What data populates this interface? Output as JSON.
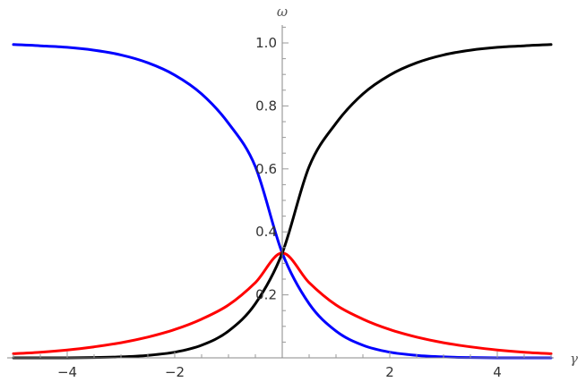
{
  "chart_data": {
    "type": "line",
    "xlabel": "γ",
    "ylabel": "ω",
    "xlim": [
      -5.1,
      5.05
    ],
    "ylim": [
      0,
      1.06
    ],
    "x_ticks": [
      -4,
      -2,
      2,
      4
    ],
    "x_tick_labels": [
      "−4",
      "−2",
      "2",
      "4"
    ],
    "y_ticks": [
      0.2,
      0.4,
      0.6,
      0.8,
      1.0
    ],
    "y_tick_labels": [
      "0.2",
      "0.4",
      "0.6",
      "0.8",
      "1.0"
    ],
    "grid": false,
    "x": [
      -5,
      -4.5,
      -4,
      -3.5,
      -3,
      -2.5,
      -2,
      -1.5,
      -1,
      -0.5,
      0,
      0.5,
      1,
      1.5,
      2,
      2.5,
      3,
      3.5,
      4,
      4.5,
      5
    ],
    "series": [
      {
        "color": "#0000ff",
        "values": [
          0.995,
          0.991,
          0.986,
          0.977,
          0.962,
          0.937,
          0.898,
          0.838,
          0.745,
          0.607,
          0.333,
          0.172,
          0.085,
          0.04,
          0.018,
          0.008,
          0.003,
          0.001,
          0.0,
          0.0,
          0.0
        ]
      },
      {
        "color": "#ff0000",
        "values": [
          0.013,
          0.018,
          0.025,
          0.035,
          0.048,
          0.066,
          0.09,
          0.123,
          0.168,
          0.239,
          0.333,
          0.239,
          0.168,
          0.123,
          0.09,
          0.066,
          0.048,
          0.035,
          0.025,
          0.018,
          0.013
        ]
      },
      {
        "color": "#000000",
        "values": [
          0.0,
          0.0,
          0.0,
          0.001,
          0.003,
          0.008,
          0.018,
          0.04,
          0.085,
          0.172,
          0.333,
          0.607,
          0.745,
          0.838,
          0.898,
          0.937,
          0.962,
          0.977,
          0.986,
          0.991,
          0.995
        ]
      }
    ]
  }
}
